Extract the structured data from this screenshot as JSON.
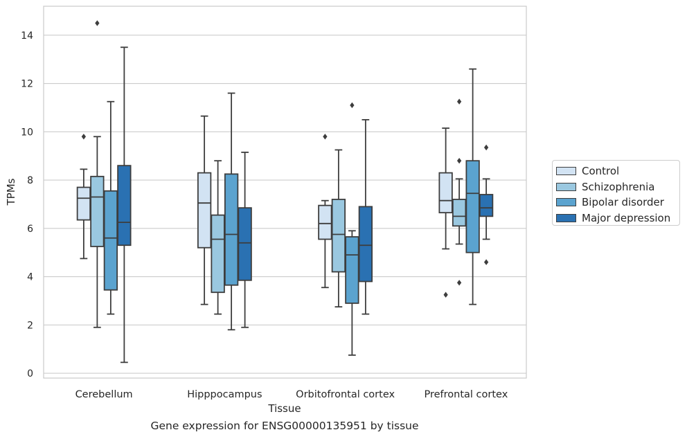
{
  "caption": "Gene expression for ENSG00000135951 by tissue",
  "chart_data": {
    "type": "box",
    "xlabel": "Tissue",
    "ylabel": "TPMs",
    "ylim": [
      -0.2,
      15.2
    ],
    "yticks": [
      0,
      2,
      4,
      6,
      8,
      10,
      12,
      14
    ],
    "grid": "horizontal",
    "legend_position": "right",
    "categories": [
      "Cerebellum",
      "Hipppocampus",
      "Orbitofrontal cortex",
      "Prefrontal cortex"
    ],
    "series": [
      {
        "name": "Control",
        "color": "#d2e3f3",
        "boxes": [
          {
            "whisker_low": 4.75,
            "q1": 6.35,
            "median": 7.25,
            "q3": 7.7,
            "whisker_high": 8.45,
            "outliers": [
              9.8
            ]
          },
          {
            "whisker_low": 2.85,
            "q1": 5.2,
            "median": 7.05,
            "q3": 8.3,
            "whisker_high": 10.65,
            "outliers": []
          },
          {
            "whisker_low": 3.55,
            "q1": 5.55,
            "median": 6.2,
            "q3": 6.95,
            "whisker_high": 7.15,
            "outliers": [
              9.8
            ]
          },
          {
            "whisker_low": 5.15,
            "q1": 6.65,
            "median": 7.15,
            "q3": 8.3,
            "whisker_high": 10.15,
            "outliers": [
              3.25
            ]
          }
        ]
      },
      {
        "name": "Schizophrenia",
        "color": "#9ac8e0",
        "boxes": [
          {
            "whisker_low": 1.9,
            "q1": 5.25,
            "median": 7.3,
            "q3": 8.15,
            "whisker_high": 9.8,
            "outliers": [
              14.5
            ]
          },
          {
            "whisker_low": 2.45,
            "q1": 3.35,
            "median": 5.55,
            "q3": 6.55,
            "whisker_high": 8.8,
            "outliers": []
          },
          {
            "whisker_low": 2.75,
            "q1": 4.2,
            "median": 5.75,
            "q3": 7.2,
            "whisker_high": 9.25,
            "outliers": []
          },
          {
            "whisker_low": 5.35,
            "q1": 6.1,
            "median": 6.5,
            "q3": 7.2,
            "whisker_high": 8.05,
            "outliers": [
              11.25,
              8.8,
              3.75
            ]
          }
        ]
      },
      {
        "name": "Bipolar disorder",
        "color": "#5ba3cf",
        "boxes": [
          {
            "whisker_low": 2.45,
            "q1": 3.45,
            "median": 5.6,
            "q3": 7.55,
            "whisker_high": 11.25,
            "outliers": []
          },
          {
            "whisker_low": 1.8,
            "q1": 3.65,
            "median": 5.75,
            "q3": 8.25,
            "whisker_high": 11.6,
            "outliers": []
          },
          {
            "whisker_low": 0.75,
            "q1": 2.9,
            "median": 4.9,
            "q3": 5.65,
            "whisker_high": 5.9,
            "outliers": [
              11.1
            ]
          },
          {
            "whisker_low": 2.85,
            "q1": 5.0,
            "median": 7.45,
            "q3": 8.8,
            "whisker_high": 12.6,
            "outliers": []
          }
        ]
      },
      {
        "name": "Major depression",
        "color": "#2a71b2",
        "boxes": [
          {
            "whisker_low": 0.45,
            "q1": 5.3,
            "median": 6.25,
            "q3": 8.6,
            "whisker_high": 13.5,
            "outliers": []
          },
          {
            "whisker_low": 1.9,
            "q1": 3.85,
            "median": 5.4,
            "q3": 6.85,
            "whisker_high": 9.15,
            "outliers": []
          },
          {
            "whisker_low": 2.45,
            "q1": 3.8,
            "median": 5.3,
            "q3": 6.9,
            "whisker_high": 10.5,
            "outliers": []
          },
          {
            "whisker_low": 5.55,
            "q1": 6.5,
            "median": 6.85,
            "q3": 7.4,
            "whisker_high": 8.05,
            "outliers": [
              9.35,
              4.6
            ]
          }
        ]
      }
    ]
  }
}
